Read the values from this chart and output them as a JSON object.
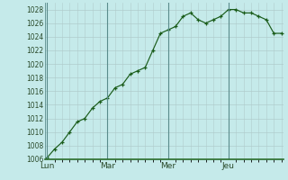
{
  "background_color": "#c5eaea",
  "grid_color": "#b0cccc",
  "line_color": "#1a5c1a",
  "marker_color": "#1a5c1a",
  "ylim": [
    1006,
    1029
  ],
  "yticks": [
    1006,
    1008,
    1010,
    1012,
    1014,
    1016,
    1018,
    1020,
    1022,
    1024,
    1026,
    1028
  ],
  "day_labels": [
    "Lun",
    "Mar",
    "Mer",
    "Jeu"
  ],
  "day_positions": [
    0,
    8,
    16,
    24
  ],
  "xlim": [
    -0.3,
    31.3
  ],
  "x": [
    0,
    1,
    2,
    3,
    4,
    5,
    6,
    7,
    8,
    9,
    10,
    11,
    12,
    13,
    14,
    15,
    16,
    17,
    18,
    19,
    20,
    21,
    22,
    23,
    24,
    25,
    26,
    27,
    28,
    29,
    30,
    31
  ],
  "y": [
    1006.2,
    1007.5,
    1008.5,
    1010.0,
    1011.5,
    1012.0,
    1013.5,
    1014.5,
    1015.0,
    1016.5,
    1017.0,
    1018.5,
    1019.0,
    1019.5,
    1022.0,
    1024.5,
    1025.0,
    1025.5,
    1027.0,
    1027.5,
    1026.5,
    1026.0,
    1026.5,
    1027.0,
    1028.0,
    1028.0,
    1027.5,
    1027.5,
    1027.0,
    1026.5,
    1024.5,
    1024.5
  ],
  "vline_color": "#5a8c8c",
  "spine_color": "#2a6c2a",
  "tick_label_fontsize": 5.5,
  "day_label_fontsize": 6.5
}
